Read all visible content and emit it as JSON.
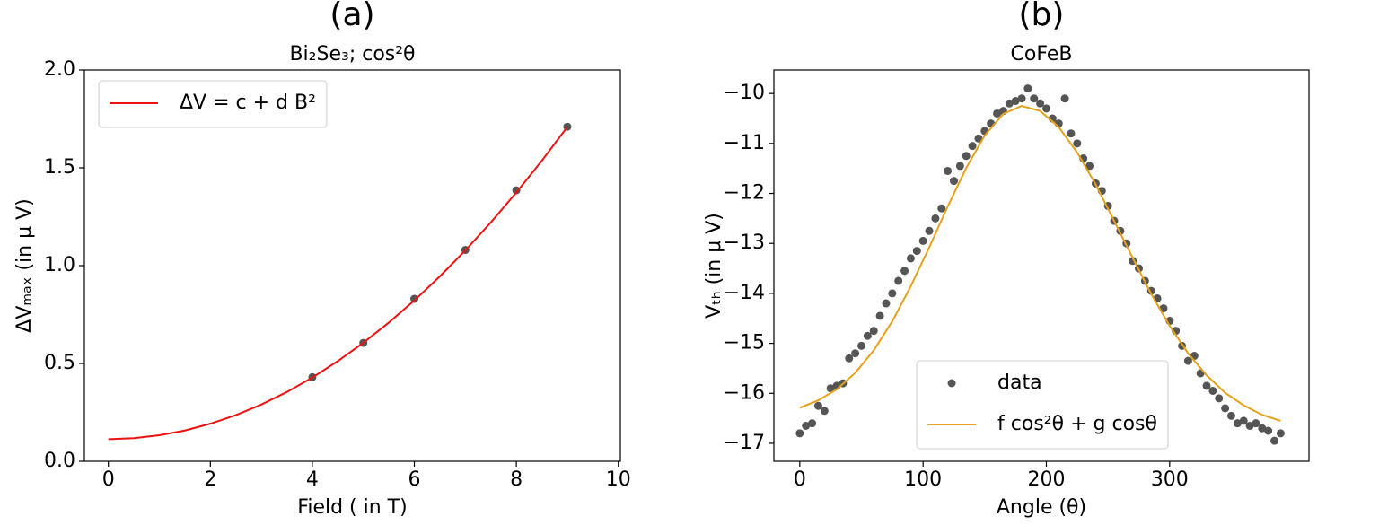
{
  "chart_data": [
    {
      "type": "line",
      "title": "(a)",
      "subtitle": "Bi₂Se₃; cos²θ",
      "xlabel": "Field ( in T)",
      "ylabel": "ΔVₘₐₓ (in μ V)",
      "xlim": [
        -0.47,
        10.04
      ],
      "ylim": [
        0,
        2
      ],
      "xticks": [
        0,
        2,
        4,
        6,
        8,
        10
      ],
      "yticks": [
        {
          "value": 0,
          "label": "0.0"
        },
        {
          "value": 0.5,
          "label": "0.5"
        },
        {
          "value": 1,
          "label": "1.0"
        },
        {
          "value": 1.5,
          "label": "1.5"
        },
        {
          "value": 2,
          "label": "2.0"
        }
      ],
      "legend": "upper left",
      "series": [
        {
          "type": "scatter",
          "color": "#555555",
          "x": [
            4,
            5,
            6,
            7,
            8,
            9
          ],
          "values": [
            0.43,
            0.605,
            0.83,
            1.08,
            1.385,
            1.71
          ]
        },
        {
          "type": "line",
          "name": "ΔV = c + d B²",
          "color": "#ee1111",
          "x": [
            0,
            0.5,
            1,
            1.5,
            2,
            2.5,
            3,
            3.5,
            4,
            4.5,
            5,
            5.5,
            6,
            6.5,
            7,
            7.5,
            8,
            8.5,
            9
          ],
          "values": [
            0.113,
            0.118,
            0.133,
            0.157,
            0.192,
            0.236,
            0.29,
            0.354,
            0.428,
            0.512,
            0.606,
            0.709,
            0.822,
            0.945,
            1.078,
            1.221,
            1.374,
            1.536,
            1.709
          ]
        }
      ]
    },
    {
      "type": "line",
      "title": "(b)",
      "subtitle": "CoFeB",
      "xlabel": "Angle (θ)",
      "ylabel": "Vₜₕ (in μ V)",
      "xlim": [
        -21,
        413
      ],
      "ylim": [
        -17.36,
        -9.53
      ],
      "xticks": [
        0,
        100,
        200,
        300
      ],
      "yticks": [
        {
          "value": -10,
          "label": "−10"
        },
        {
          "value": -11,
          "label": "−11"
        },
        {
          "value": -12,
          "label": "−12"
        },
        {
          "value": -13,
          "label": "−13"
        },
        {
          "value": -14,
          "label": "−14"
        },
        {
          "value": -15,
          "label": "−15"
        },
        {
          "value": -16,
          "label": "−16"
        },
        {
          "value": -17,
          "label": "−17"
        }
      ],
      "legend": "lower center",
      "series": [
        {
          "type": "scatter",
          "name": "data",
          "color": "#555555",
          "x": [
            0,
            5,
            10,
            15,
            20,
            25,
            30,
            35,
            40,
            45,
            50,
            55,
            60,
            65,
            70,
            75,
            80,
            85,
            90,
            95,
            100,
            105,
            110,
            115,
            120,
            125,
            130,
            135,
            140,
            145,
            150,
            155,
            160,
            165,
            170,
            175,
            180,
            185,
            190,
            195,
            200,
            205,
            210,
            215,
            220,
            225,
            230,
            235,
            240,
            245,
            250,
            255,
            260,
            265,
            270,
            275,
            280,
            285,
            290,
            295,
            300,
            305,
            310,
            315,
            320,
            325,
            330,
            335,
            340,
            345,
            350,
            355,
            360,
            365,
            370,
            375,
            380,
            385,
            390
          ],
          "values": [
            -16.8,
            -16.65,
            -16.6,
            -16.25,
            -16.35,
            -15.9,
            -15.85,
            -15.8,
            -15.3,
            -15.2,
            -15.05,
            -14.85,
            -14.75,
            -14.45,
            -14.2,
            -14.0,
            -13.75,
            -13.55,
            -13.3,
            -13.15,
            -12.95,
            -12.75,
            -12.5,
            -12.3,
            -11.55,
            -11.75,
            -11.45,
            -11.25,
            -11.05,
            -10.9,
            -10.75,
            -10.6,
            -10.4,
            -10.35,
            -10.2,
            -10.15,
            -10.1,
            -9.9,
            -10.1,
            -10.2,
            -10.3,
            -10.5,
            -10.6,
            -10.1,
            -10.8,
            -11.0,
            -11.3,
            -11.45,
            -11.8,
            -11.95,
            -12.25,
            -12.55,
            -12.75,
            -13.0,
            -13.35,
            -13.5,
            -13.75,
            -13.95,
            -14.1,
            -14.3,
            -14.55,
            -14.75,
            -15.05,
            -15.35,
            -15.25,
            -15.6,
            -15.85,
            -15.95,
            -16.1,
            -16.3,
            -16.45,
            -16.6,
            -16.55,
            -16.65,
            -16.6,
            -16.7,
            -16.75,
            -16.95,
            -16.8
          ]
        },
        {
          "type": "line",
          "name": "f cos²θ + g cosθ",
          "color": "#e5a11a",
          "x": [
            0,
            15,
            30,
            45,
            60,
            75,
            90,
            105,
            120,
            135,
            150,
            165,
            180,
            195,
            210,
            225,
            240,
            255,
            270,
            285,
            300,
            315,
            330,
            345,
            360,
            375,
            390
          ],
          "values": [
            -16.29,
            -16.14,
            -15.92,
            -15.59,
            -15.14,
            -14.56,
            -13.86,
            -13.08,
            -12.26,
            -11.49,
            -10.84,
            -10.41,
            -10.25,
            -10.35,
            -10.67,
            -11.18,
            -11.82,
            -12.55,
            -13.29,
            -14.01,
            -14.65,
            -15.2,
            -15.64,
            -15.99,
            -16.24,
            -16.43,
            -16.55
          ]
        }
      ]
    }
  ]
}
